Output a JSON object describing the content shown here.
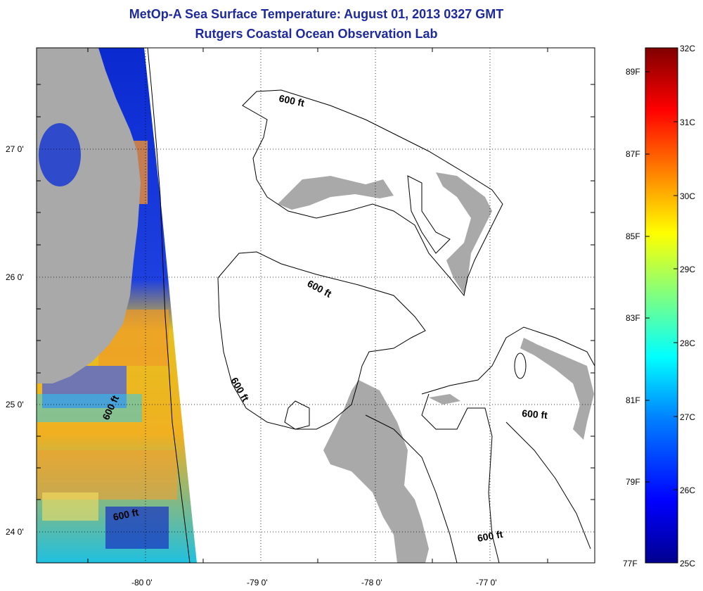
{
  "title": "MetOp-A Sea Surface Temperature:  August 01, 2013 0327 GMT",
  "subtitle": "Rutgers Coastal Ocean Observation Lab",
  "axes": {
    "lat_ticks": [
      "27 0'",
      "26 0'",
      "25 0'",
      "24 0'"
    ],
    "lon_ticks": [
      "-80 0'",
      "-79 0'",
      "-78 0'",
      "-77 0'"
    ]
  },
  "contours": {
    "label": "600 ft"
  },
  "colorbar": {
    "celsius": [
      "32C",
      "31C",
      "30C",
      "29C",
      "28C",
      "27C",
      "26C",
      "25C"
    ],
    "fahrenheit": [
      "89F",
      "87F",
      "85F",
      "83F",
      "81F",
      "79F",
      "77F"
    ],
    "colors": [
      "#00008f",
      "#0000ff",
      "#0080ff",
      "#00ffff",
      "#80ff80",
      "#ffff00",
      "#ff8000",
      "#ff0000",
      "#800000"
    ]
  },
  "colors": {
    "land": "#a9a9a9",
    "title": "#1e2a9c"
  }
}
